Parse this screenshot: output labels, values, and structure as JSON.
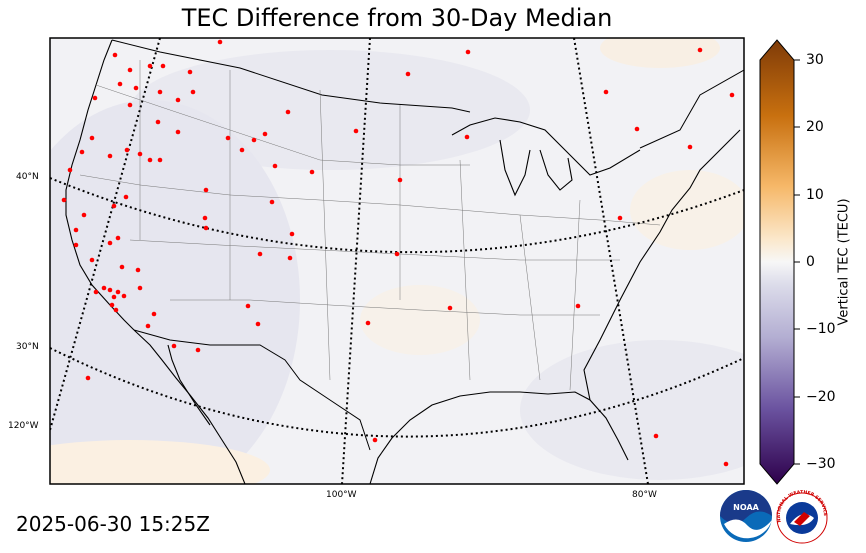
{
  "title": "TEC Difference from 30-Day Median",
  "timestamp": "2025-06-30 15:25Z",
  "colorbar": {
    "label": "Vertical TEC (TECU)",
    "ticks": [
      "30",
      "20",
      "10",
      "0",
      "−10",
      "−20",
      "−30"
    ],
    "min": -30,
    "max": 30
  },
  "grid_labels": {
    "lat_40": "40°N",
    "lat_30": "30°N",
    "lon_120": "120°W",
    "lon_100": "100°W",
    "lon_80": "80°W"
  },
  "colors": {
    "station_marker": "#ff0000",
    "map_background": "#f0f0f3",
    "positive": "#8b4a0a",
    "negative": "#2d0a4e"
  },
  "logos": {
    "noaa": "NOAA",
    "nws": "NATIONAL WEATHER SERVICE"
  }
}
